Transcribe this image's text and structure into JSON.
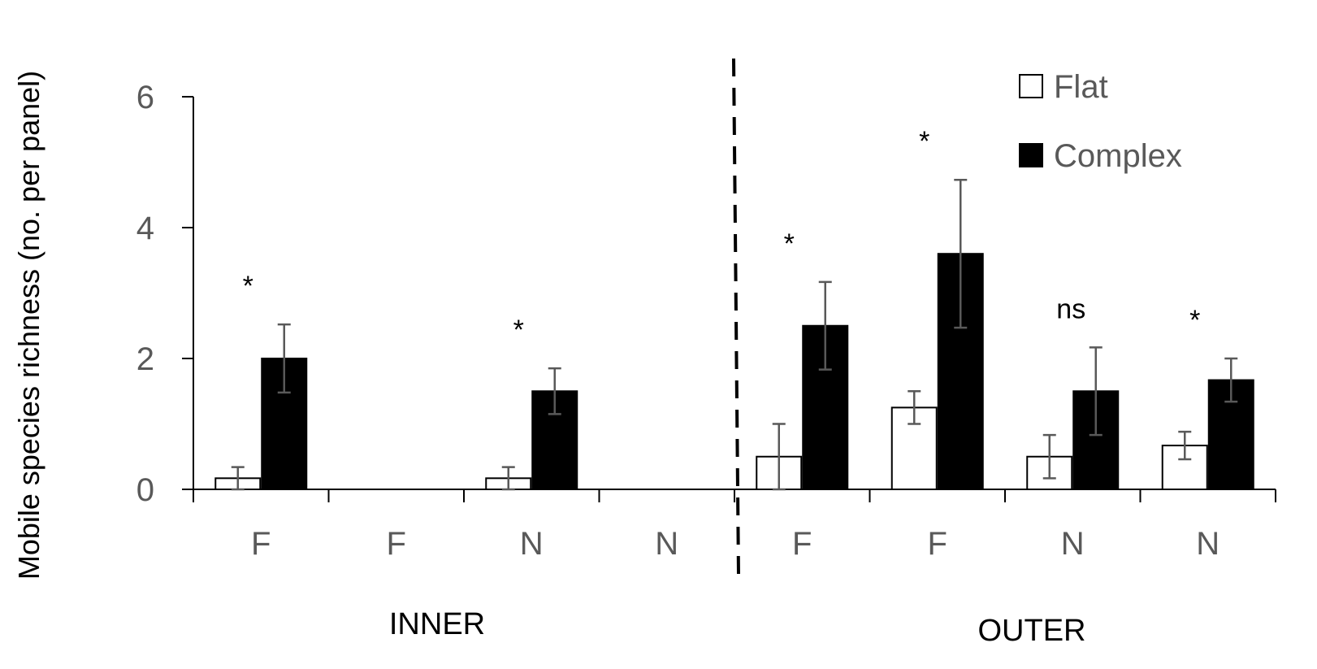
{
  "chart_data": {
    "type": "bar",
    "title": "",
    "xlabel": "",
    "ylabel": "Mobile species richness (no. per panel)",
    "ylim": [
      0,
      6
    ],
    "yticks": [
      0,
      2,
      4,
      6
    ],
    "grid": false,
    "legend_position": "top-right",
    "categories": [
      "F",
      "F",
      "N",
      "N",
      "F",
      "F",
      "N",
      "N"
    ],
    "groups": [
      {
        "label": "INNER",
        "categories": [
          0,
          1,
          2,
          3
        ]
      },
      {
        "label": "OUTER",
        "categories": [
          4,
          5,
          6,
          7
        ]
      }
    ],
    "series": [
      {
        "name": "Flat",
        "color": "#ffffff",
        "values": [
          0.17,
          0,
          0.17,
          0,
          0.5,
          1.25,
          0.5,
          0.67
        ],
        "errors": [
          0.17,
          0,
          0.17,
          0,
          0.5,
          0.25,
          0.33,
          0.21
        ]
      },
      {
        "name": "Complex",
        "color": "#000000",
        "values": [
          2.0,
          0,
          1.5,
          0,
          2.5,
          3.6,
          1.5,
          1.67
        ],
        "errors": [
          0.52,
          0,
          0.35,
          0,
          0.67,
          1.13,
          0.67,
          0.33
        ]
      }
    ],
    "annotations": [
      "*",
      "",
      "*",
      "",
      "*",
      "*",
      "ns",
      "*"
    ]
  }
}
